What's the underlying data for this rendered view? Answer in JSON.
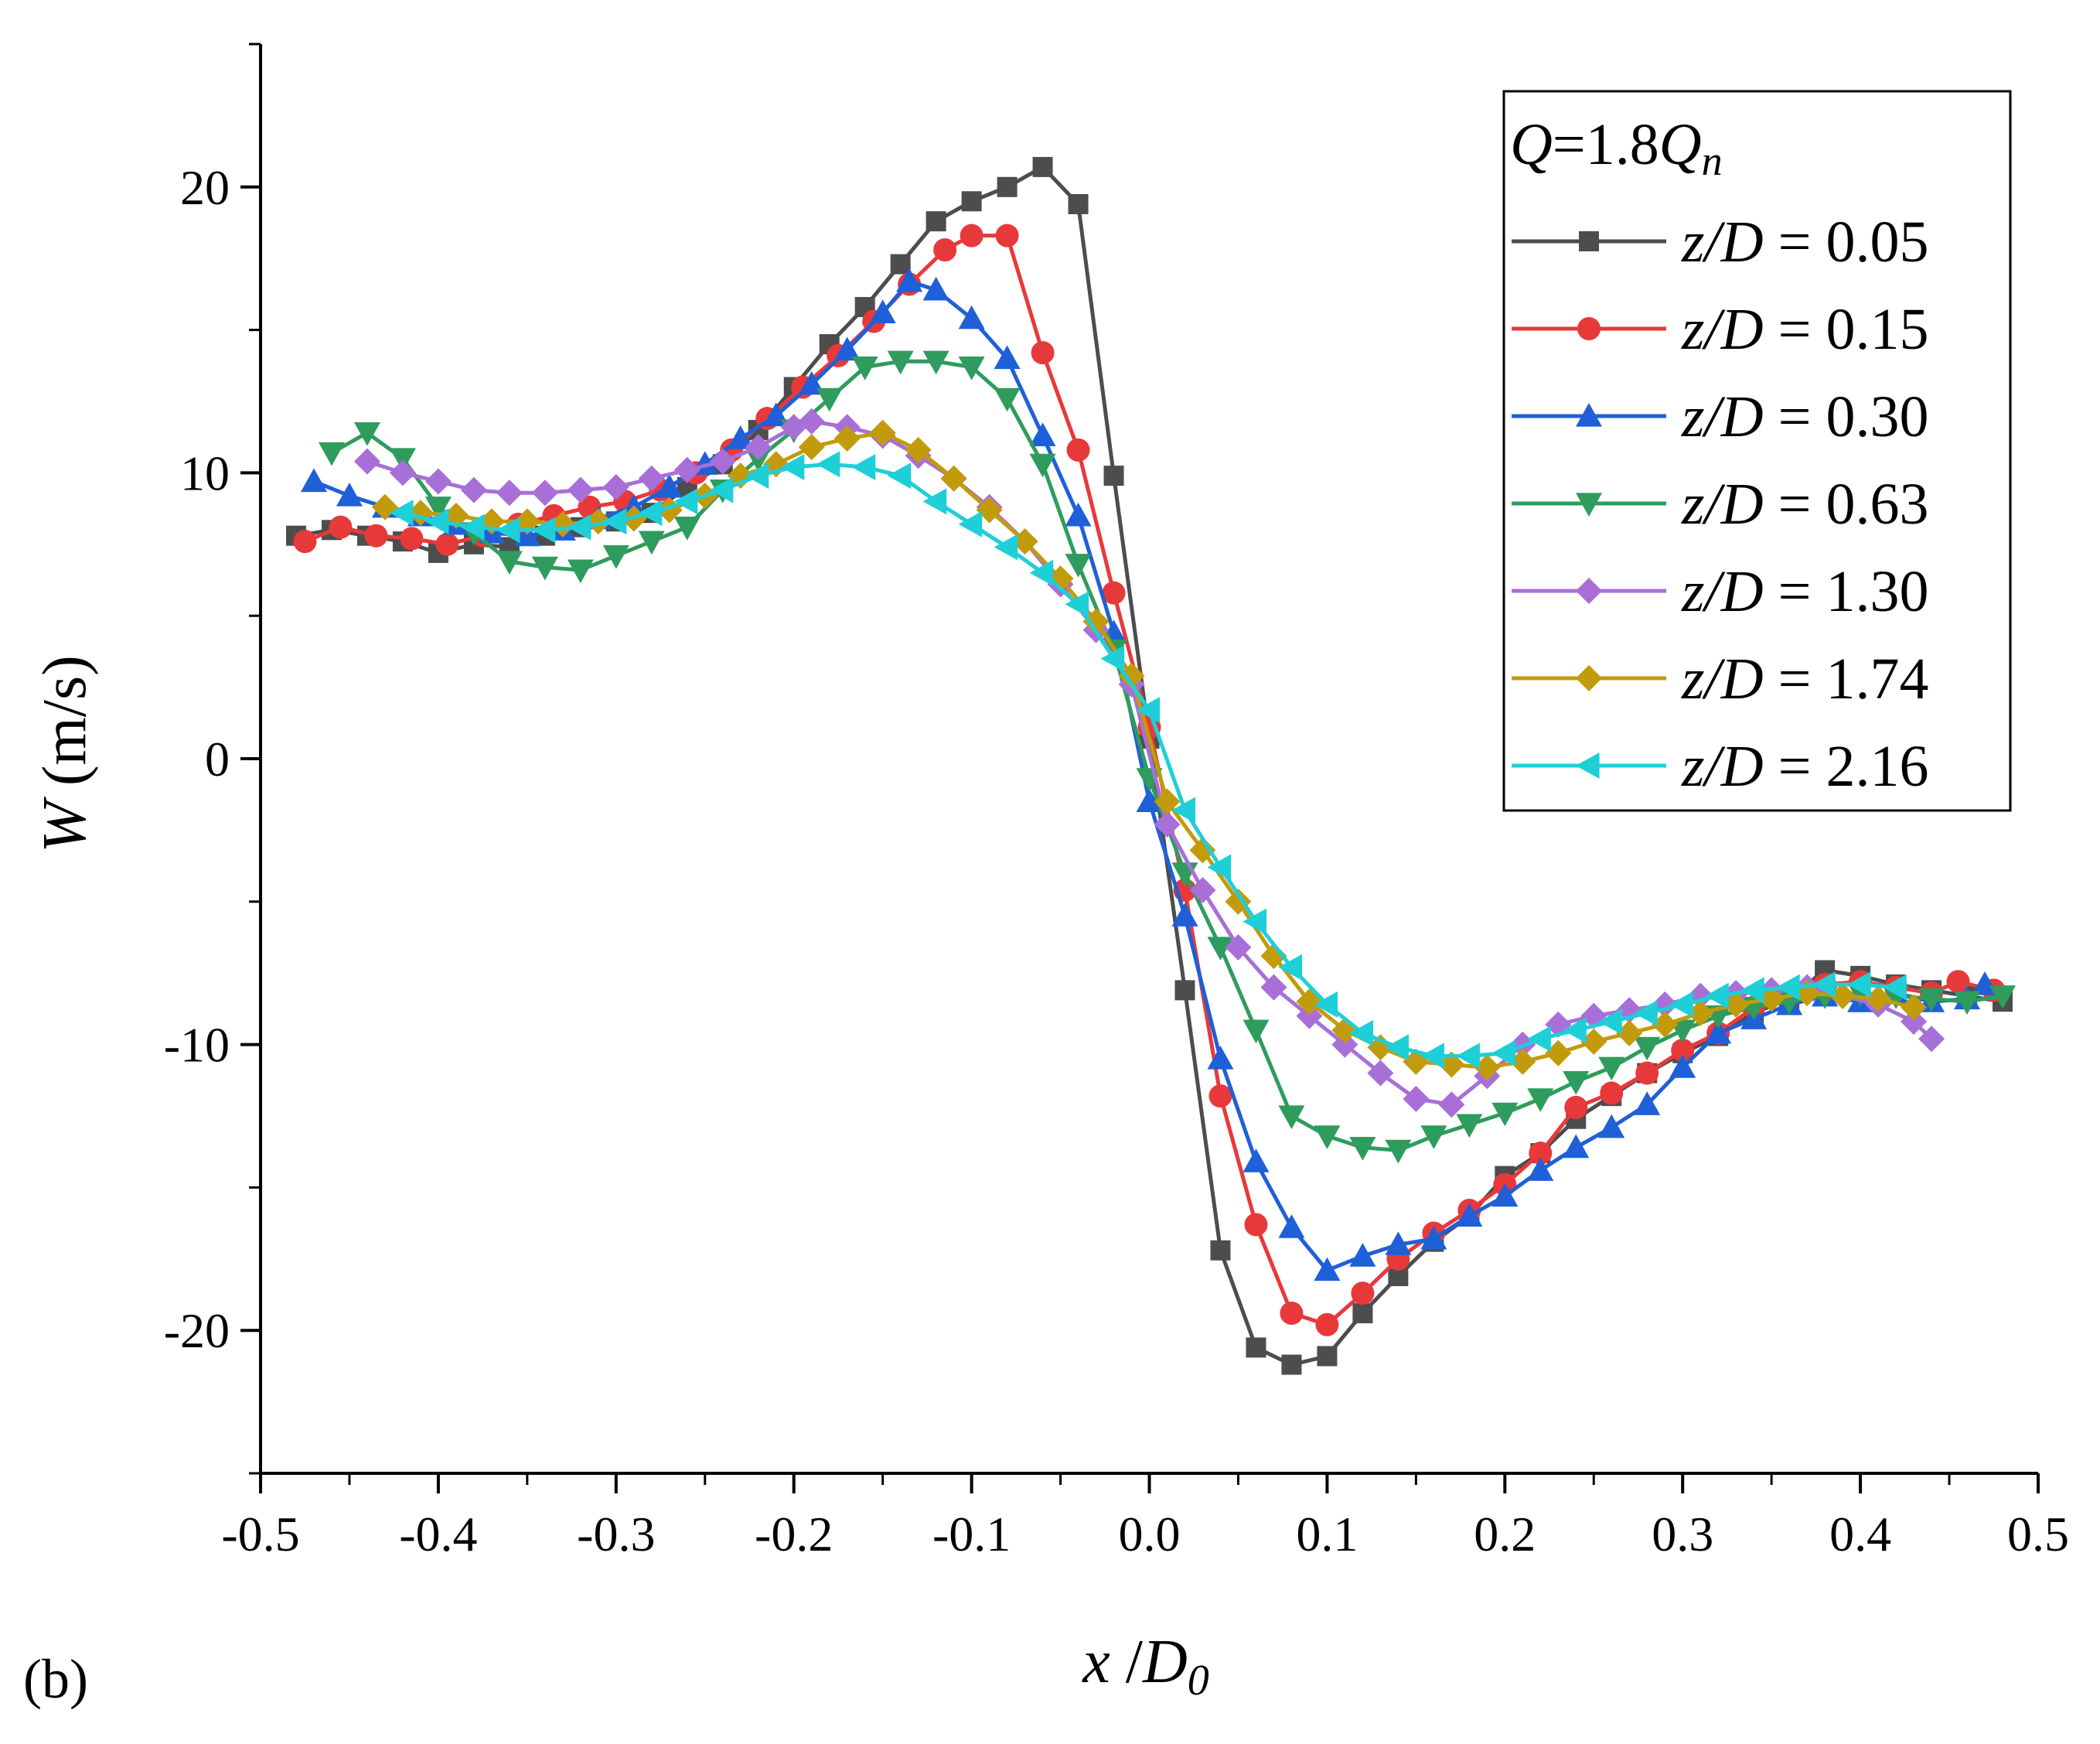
{
  "panel_label": "(b)",
  "colors": {
    "z005": "#4d4d4d",
    "z015": "#e8393a",
    "z030": "#1f5fd8",
    "z063": "#2e9c5c",
    "z130": "#a86fd8",
    "z174": "#c29b0c",
    "z216": "#1ecfd8"
  },
  "chart_data": {
    "type": "line",
    "title": "",
    "xlabel_main": "x",
    "xlabel_sep": " /",
    "xlabel_var": "D",
    "xlabel_sub": "0",
    "ylabel_main": "W",
    "ylabel_unit": " (m/s)",
    "xlim": [
      -0.5,
      0.5
    ],
    "ylim": [
      -25,
      25
    ],
    "x_ticks": [
      -0.5,
      -0.4,
      -0.3,
      -0.2,
      -0.1,
      0.0,
      0.1,
      0.2,
      0.3,
      0.4,
      0.5
    ],
    "x_tick_labels": [
      "-0.5",
      "-0.4",
      "-0.3",
      "-0.2",
      "-0.1",
      "0.0",
      "0.1",
      "0.2",
      "0.3",
      "0.4",
      "0.5"
    ],
    "y_ticks": [
      -20,
      -10,
      0,
      10,
      20
    ],
    "y_tick_labels": [
      "-20",
      "-10",
      "0",
      "10",
      "20"
    ],
    "legend_title": {
      "q": "Q",
      "mid": "=1.8",
      "q2": "Q",
      "sub": "n"
    },
    "legend_position": "top-right",
    "grid": false,
    "series": [
      {
        "key": "z005",
        "marker": "square",
        "label_var": "z/D",
        "label_val": " = 0.05",
        "x": [
          -0.48,
          -0.46,
          -0.44,
          -0.42,
          -0.4,
          -0.38,
          -0.36,
          -0.34,
          -0.32,
          -0.3,
          -0.28,
          -0.26,
          -0.24,
          -0.22,
          -0.2,
          -0.18,
          -0.16,
          -0.14,
          -0.12,
          -0.1,
          -0.08,
          -0.06,
          -0.04,
          -0.02,
          0.0,
          0.02,
          0.04,
          0.06,
          0.08,
          0.1,
          0.12,
          0.14,
          0.16,
          0.18,
          0.2,
          0.22,
          0.24,
          0.26,
          0.28,
          0.3,
          0.32,
          0.34,
          0.36,
          0.38,
          0.4,
          0.42,
          0.44,
          0.46,
          0.48
        ],
        "y": [
          7.8,
          8.0,
          7.8,
          7.6,
          7.2,
          7.5,
          7.4,
          7.8,
          8.1,
          8.3,
          8.6,
          9.5,
          10.3,
          11.5,
          13.0,
          14.5,
          15.8,
          17.3,
          18.8,
          19.5,
          20.0,
          20.7,
          19.4,
          9.9,
          0.7,
          -8.1,
          -17.2,
          -20.6,
          -21.2,
          -20.9,
          -19.4,
          -18.1,
          -16.9,
          -16.0,
          -14.6,
          -13.8,
          -12.6,
          -11.8,
          -11.0,
          -10.3,
          -9.7,
          -8.9,
          -8.4,
          -7.4,
          -7.6,
          -7.9,
          -8.1,
          -8.3,
          -8.5
        ]
      },
      {
        "key": "z015",
        "marker": "circle",
        "label_var": "z/D",
        "label_val": " = 0.15",
        "x": [
          -0.475,
          -0.455,
          -0.435,
          -0.415,
          -0.395,
          -0.375,
          -0.355,
          -0.335,
          -0.315,
          -0.295,
          -0.275,
          -0.255,
          -0.235,
          -0.215,
          -0.195,
          -0.175,
          -0.155,
          -0.135,
          -0.115,
          -0.1,
          -0.08,
          -0.06,
          -0.04,
          -0.02,
          0.0,
          0.02,
          0.04,
          0.06,
          0.08,
          0.1,
          0.12,
          0.14,
          0.16,
          0.18,
          0.2,
          0.22,
          0.24,
          0.26,
          0.28,
          0.3,
          0.32,
          0.34,
          0.36,
          0.38,
          0.4,
          0.42,
          0.44,
          0.455,
          0.475
        ],
        "y": [
          7.6,
          8.1,
          7.8,
          7.7,
          7.5,
          7.8,
          8.2,
          8.5,
          8.8,
          9.0,
          9.4,
          10.0,
          10.8,
          11.9,
          13.0,
          14.1,
          15.3,
          16.6,
          17.8,
          18.3,
          18.3,
          14.2,
          10.8,
          5.8,
          1.1,
          -4.6,
          -11.8,
          -16.3,
          -19.4,
          -19.8,
          -18.7,
          -17.5,
          -16.6,
          -15.8,
          -14.9,
          -13.8,
          -12.2,
          -11.7,
          -11.0,
          -10.2,
          -9.6,
          -8.7,
          -8.2,
          -7.9,
          -7.8,
          -8.0,
          -8.2,
          -7.8,
          -8.1
        ]
      },
      {
        "key": "z030",
        "marker": "triangle-up",
        "label_var": "z/D",
        "label_val": "  = 0.30",
        "x": [
          -0.47,
          -0.45,
          -0.43,
          -0.41,
          -0.39,
          -0.37,
          -0.35,
          -0.33,
          -0.31,
          -0.29,
          -0.27,
          -0.25,
          -0.23,
          -0.21,
          -0.19,
          -0.17,
          -0.15,
          -0.135,
          -0.12,
          -0.1,
          -0.08,
          -0.06,
          -0.04,
          -0.02,
          0.0,
          0.02,
          0.04,
          0.06,
          0.08,
          0.1,
          0.12,
          0.14,
          0.16,
          0.18,
          0.2,
          0.22,
          0.24,
          0.26,
          0.28,
          0.3,
          0.32,
          0.34,
          0.36,
          0.38,
          0.4,
          0.42,
          0.44,
          0.46,
          0.47
        ],
        "y": [
          9.7,
          9.2,
          8.8,
          8.5,
          8.2,
          7.9,
          7.8,
          8.0,
          8.4,
          8.8,
          9.5,
          10.3,
          11.2,
          12.0,
          13.1,
          14.3,
          15.6,
          16.7,
          16.4,
          15.4,
          14.0,
          11.3,
          8.5,
          4.4,
          -1.5,
          -5.5,
          -10.5,
          -14.1,
          -16.4,
          -17.9,
          -17.4,
          -17.0,
          -16.8,
          -16.0,
          -15.3,
          -14.4,
          -13.6,
          -12.9,
          -12.1,
          -10.8,
          -9.6,
          -9.1,
          -8.6,
          -8.3,
          -8.5,
          -8.2,
          -8.5,
          -8.4,
          -7.9
        ]
      },
      {
        "key": "z063",
        "marker": "triangle-down",
        "label_var": "z/D",
        "label_val": "  = 0.63",
        "x": [
          -0.46,
          -0.44,
          -0.42,
          -0.4,
          -0.38,
          -0.36,
          -0.34,
          -0.32,
          -0.3,
          -0.28,
          -0.26,
          -0.24,
          -0.22,
          -0.2,
          -0.18,
          -0.16,
          -0.14,
          -0.12,
          -0.1,
          -0.08,
          -0.06,
          -0.04,
          -0.02,
          0.0,
          0.02,
          0.04,
          0.06,
          0.08,
          0.1,
          0.12,
          0.14,
          0.16,
          0.18,
          0.2,
          0.22,
          0.24,
          0.26,
          0.28,
          0.3,
          0.32,
          0.34,
          0.36,
          0.38,
          0.4,
          0.42,
          0.44,
          0.46,
          0.48
        ],
        "y": [
          10.7,
          11.4,
          10.5,
          8.8,
          7.9,
          6.9,
          6.7,
          6.6,
          7.1,
          7.6,
          8.1,
          9.4,
          10.5,
          11.5,
          12.6,
          13.7,
          13.9,
          13.9,
          13.7,
          12.6,
          10.3,
          6.8,
          3.8,
          -0.7,
          -4.0,
          -6.6,
          -9.5,
          -12.5,
          -13.2,
          -13.6,
          -13.7,
          -13.2,
          -12.8,
          -12.4,
          -11.9,
          -11.3,
          -10.8,
          -10.1,
          -9.5,
          -9.0,
          -8.7,
          -8.5,
          -8.3,
          -8.2,
          -8.3,
          -8.4,
          -8.5,
          -8.3
        ]
      },
      {
        "key": "z130",
        "marker": "diamond",
        "label_var": "z/D",
        "label_val": "  = 1.30",
        "x": [
          -0.44,
          -0.42,
          -0.4,
          -0.38,
          -0.36,
          -0.34,
          -0.32,
          -0.3,
          -0.28,
          -0.26,
          -0.24,
          -0.22,
          -0.2,
          -0.19,
          -0.17,
          -0.15,
          -0.13,
          -0.11,
          -0.09,
          -0.07,
          -0.05,
          -0.03,
          -0.01,
          0.01,
          0.03,
          0.05,
          0.07,
          0.09,
          0.11,
          0.13,
          0.15,
          0.17,
          0.19,
          0.21,
          0.23,
          0.25,
          0.27,
          0.29,
          0.31,
          0.33,
          0.35,
          0.37,
          0.39,
          0.41,
          0.43,
          0.44
        ],
        "y": [
          10.4,
          10.0,
          9.7,
          9.4,
          9.3,
          9.3,
          9.4,
          9.5,
          9.8,
          10.1,
          10.4,
          10.9,
          11.6,
          11.8,
          11.6,
          11.3,
          10.6,
          9.8,
          8.8,
          7.6,
          6.1,
          4.5,
          2.6,
          -2.3,
          -4.6,
          -6.6,
          -8.0,
          -9.0,
          -10.0,
          -11.0,
          -11.9,
          -12.1,
          -11.1,
          -10.0,
          -9.3,
          -9.0,
          -8.8,
          -8.6,
          -8.3,
          -8.2,
          -8.1,
          -8.0,
          -8.3,
          -8.6,
          -9.2,
          -9.8
        ]
      },
      {
        "key": "z174",
        "marker": "diamond",
        "label_var": "z/D",
        "label_val": "  = 1.74",
        "x": [
          -0.43,
          -0.41,
          -0.39,
          -0.37,
          -0.35,
          -0.33,
          -0.31,
          -0.29,
          -0.27,
          -0.25,
          -0.23,
          -0.21,
          -0.19,
          -0.17,
          -0.15,
          -0.13,
          -0.11,
          -0.09,
          -0.07,
          -0.05,
          -0.03,
          -0.01,
          0.01,
          0.03,
          0.05,
          0.07,
          0.09,
          0.11,
          0.13,
          0.15,
          0.17,
          0.19,
          0.21,
          0.23,
          0.25,
          0.27,
          0.29,
          0.31,
          0.33,
          0.35,
          0.37,
          0.39,
          0.41,
          0.43
        ],
        "y": [
          8.8,
          8.6,
          8.5,
          8.3,
          8.3,
          8.2,
          8.3,
          8.4,
          8.7,
          9.2,
          9.9,
          10.3,
          10.9,
          11.2,
          11.4,
          10.8,
          9.8,
          8.7,
          7.6,
          6.3,
          4.8,
          2.9,
          -1.5,
          -3.2,
          -5.0,
          -6.9,
          -8.5,
          -9.5,
          -10.1,
          -10.6,
          -10.7,
          -10.8,
          -10.6,
          -10.3,
          -9.9,
          -9.6,
          -9.3,
          -8.9,
          -8.6,
          -8.4,
          -8.2,
          -8.3,
          -8.4,
          -8.7
        ]
      },
      {
        "key": "z216",
        "marker": "triangle-left",
        "label_var": "z/D",
        "label_val": "  = 2.16",
        "x": [
          -0.42,
          -0.4,
          -0.38,
          -0.36,
          -0.34,
          -0.32,
          -0.3,
          -0.28,
          -0.26,
          -0.24,
          -0.22,
          -0.2,
          -0.18,
          -0.16,
          -0.14,
          -0.12,
          -0.1,
          -0.08,
          -0.06,
          -0.04,
          -0.02,
          0.0,
          0.02,
          0.04,
          0.06,
          0.08,
          0.1,
          0.12,
          0.14,
          0.16,
          0.18,
          0.2,
          0.22,
          0.24,
          0.26,
          0.28,
          0.3,
          0.32,
          0.34,
          0.36,
          0.38,
          0.4,
          0.42
        ],
        "y": [
          8.6,
          8.3,
          8.1,
          8.0,
          8.0,
          8.1,
          8.3,
          8.6,
          9.0,
          9.4,
          9.9,
          10.2,
          10.3,
          10.2,
          9.9,
          9.0,
          8.2,
          7.4,
          6.5,
          5.4,
          3.5,
          1.7,
          -1.8,
          -3.8,
          -5.7,
          -7.3,
          -8.6,
          -9.6,
          -10.1,
          -10.4,
          -10.4,
          -10.3,
          -9.8,
          -9.5,
          -9.2,
          -8.9,
          -8.6,
          -8.3,
          -8.1,
          -8.0,
          -7.9,
          -7.9,
          -8.0
        ]
      }
    ]
  }
}
